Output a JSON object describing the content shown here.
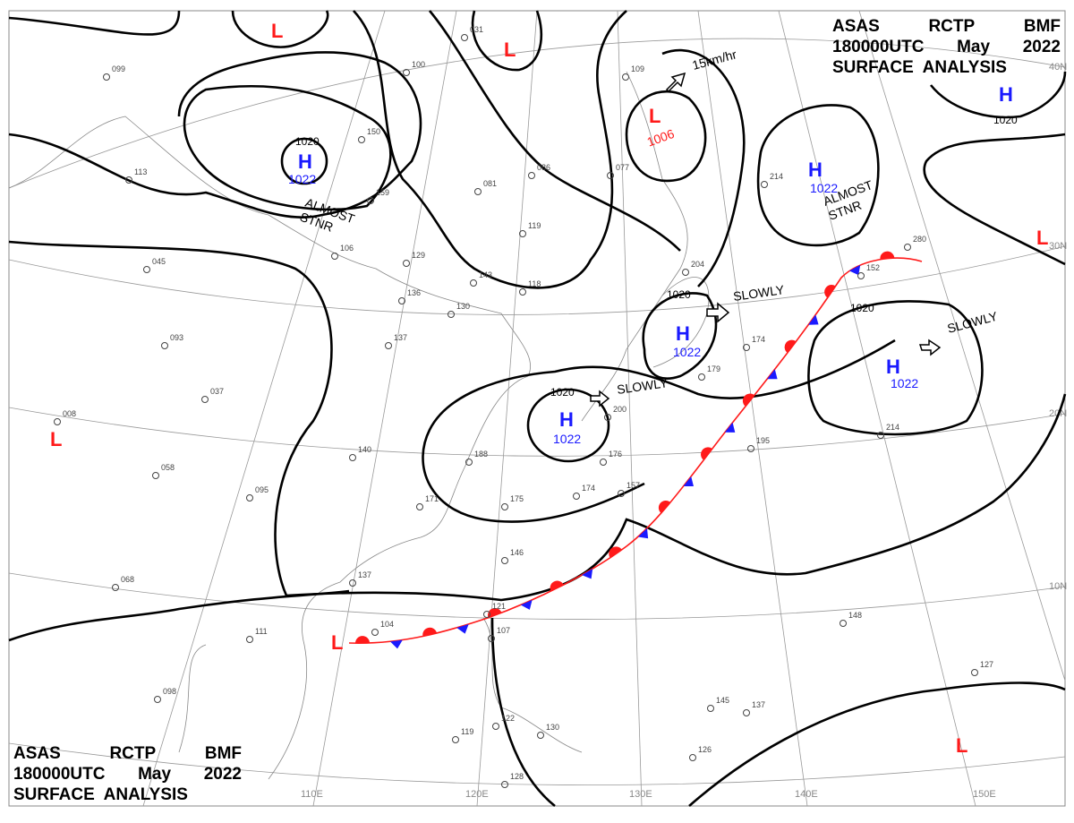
{
  "map": {
    "title_top_right": {
      "line1": [
        "ASAS",
        "RCTP",
        "BMF"
      ],
      "line2": [
        "180000UTC",
        "May",
        "2022"
      ],
      "line3": "SURFACE  ANALYSIS"
    },
    "title_bottom_left": {
      "line1": [
        "ASAS",
        "RCTP",
        "BMF"
      ],
      "line2": [
        "180000UTC",
        "May",
        "2022"
      ],
      "line3": "SURFACE  ANALYSIS"
    },
    "latitude_labels": [
      "40N",
      "30N",
      "20N",
      "10N"
    ],
    "longitude_labels": [
      "110E",
      "120E",
      "130E",
      "140E",
      "150E"
    ],
    "highs": [
      {
        "symbol": "H",
        "pressure": "1022"
      },
      {
        "symbol": "H",
        "pressure": "1022"
      },
      {
        "symbol": "H",
        "pressure": "1022"
      },
      {
        "symbol": "H",
        "pressure": "1022"
      },
      {
        "symbol": "H",
        "pressure": "1022"
      },
      {
        "symbol": "H",
        "pressure": ""
      }
    ],
    "lows": [
      {
        "symbol": "L",
        "pressure": "1006"
      },
      {
        "symbol": "L"
      },
      {
        "symbol": "L"
      },
      {
        "symbol": "L"
      },
      {
        "symbol": "L"
      },
      {
        "symbol": "L"
      },
      {
        "symbol": "L"
      }
    ],
    "isobar_labels": [
      "1020",
      "1020",
      "1020",
      "1020",
      "1020"
    ],
    "movement_notes": [
      "ALMOST\nSTNR",
      "ALMOST\nSTNR",
      "SLOWLY",
      "SLOWLY",
      "SLOWLY",
      "15km/hr"
    ],
    "front": {
      "type": "stationary",
      "warm_color": "#ff1a1a",
      "cold_color": "#1a1aff"
    },
    "colors": {
      "high": "#1a1aff",
      "low": "#ff1a1a",
      "isobar": "#000000",
      "grid": "#999999"
    },
    "stations": [
      "099",
      "100",
      "031",
      "109",
      "077",
      "086",
      "150",
      "159",
      "081",
      "119",
      "129",
      "136",
      "143",
      "118",
      "130",
      "137",
      "104",
      "106",
      "045",
      "093",
      "037",
      "008",
      "058",
      "095",
      "140",
      "171",
      "188",
      "175",
      "146",
      "137",
      "111",
      "098",
      "068",
      "121",
      "107",
      "122",
      "130",
      "128",
      "119",
      "176",
      "174",
      "157",
      "200",
      "204",
      "179",
      "174",
      "195",
      "214",
      "280",
      "152",
      "148",
      "145",
      "137",
      "127",
      "126",
      "113",
      "214"
    ]
  }
}
